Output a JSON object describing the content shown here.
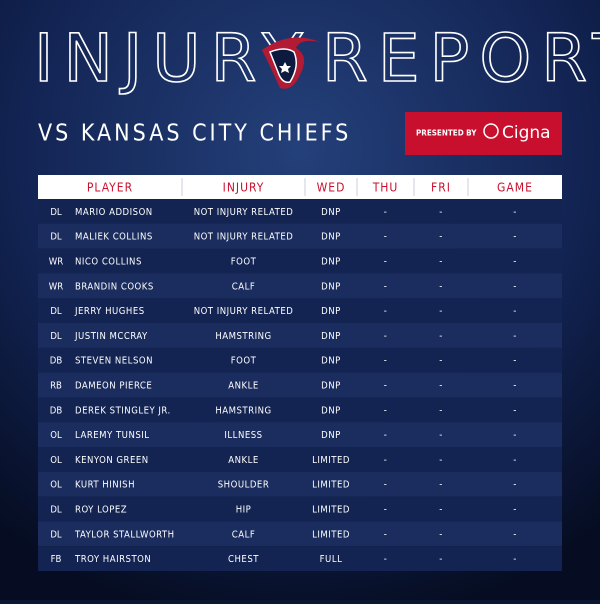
{
  "header": {
    "title_left": "INJURY",
    "title_right": "REPORT",
    "subtitle": "VS KANSAS CITY CHIEFS",
    "sponsor_prefix": "PRESENTED BY",
    "sponsor": "Cigna"
  },
  "table": {
    "columns": [
      "PLAYER",
      "INJURY",
      "WED",
      "THU",
      "FRI",
      "GAME"
    ],
    "rows": [
      [
        "DL",
        "MARIO ADDISON",
        "NOT INJURY RELATED",
        "DNP",
        "-",
        "-",
        "-"
      ],
      [
        "DL",
        "MALIEK COLLINS",
        "NOT INJURY RELATED",
        "DNP",
        "-",
        "-",
        "-"
      ],
      [
        "WR",
        "NICO COLLINS",
        "FOOT",
        "DNP",
        "-",
        "-",
        "-"
      ],
      [
        "WR",
        "BRANDIN COOKS",
        "CALF",
        "DNP",
        "-",
        "-",
        "-"
      ],
      [
        "DL",
        "JERRY HUGHES",
        "NOT INJURY RELATED",
        "DNP",
        "-",
        "-",
        "-"
      ],
      [
        "DL",
        "JUSTIN MCCRAY",
        "HAMSTRING",
        "DNP",
        "-",
        "-",
        "-"
      ],
      [
        "DB",
        "STEVEN NELSON",
        "FOOT",
        "DNP",
        "-",
        "-",
        "-"
      ],
      [
        "RB",
        "DAMEON PIERCE",
        "ANKLE",
        "DNP",
        "-",
        "-",
        "-"
      ],
      [
        "DB",
        "DEREK STINGLEY JR.",
        "HAMSTRING",
        "DNP",
        "-",
        "-",
        "-"
      ],
      [
        "OL",
        "LAREMY TUNSIL",
        "ILLNESS",
        "DNP",
        "-",
        "-",
        "-"
      ],
      [
        "OL",
        "KENYON GREEN",
        "ANKLE",
        "LIMITED",
        "-",
        "-",
        "-"
      ],
      [
        "OL",
        "KURT HINISH",
        "SHOULDER",
        "LIMITED",
        "-",
        "-",
        "-"
      ],
      [
        "DL",
        "ROY LOPEZ",
        "HIP",
        "LIMITED",
        "-",
        "-",
        "-"
      ],
      [
        "DL",
        "TAYLOR STALLWORTH",
        "CALF",
        "LIMITED",
        "-",
        "-",
        "-"
      ],
      [
        "FB",
        "TROY HAIRSTON",
        "CHEST",
        "FULL",
        "-",
        "-",
        "-"
      ]
    ]
  }
}
